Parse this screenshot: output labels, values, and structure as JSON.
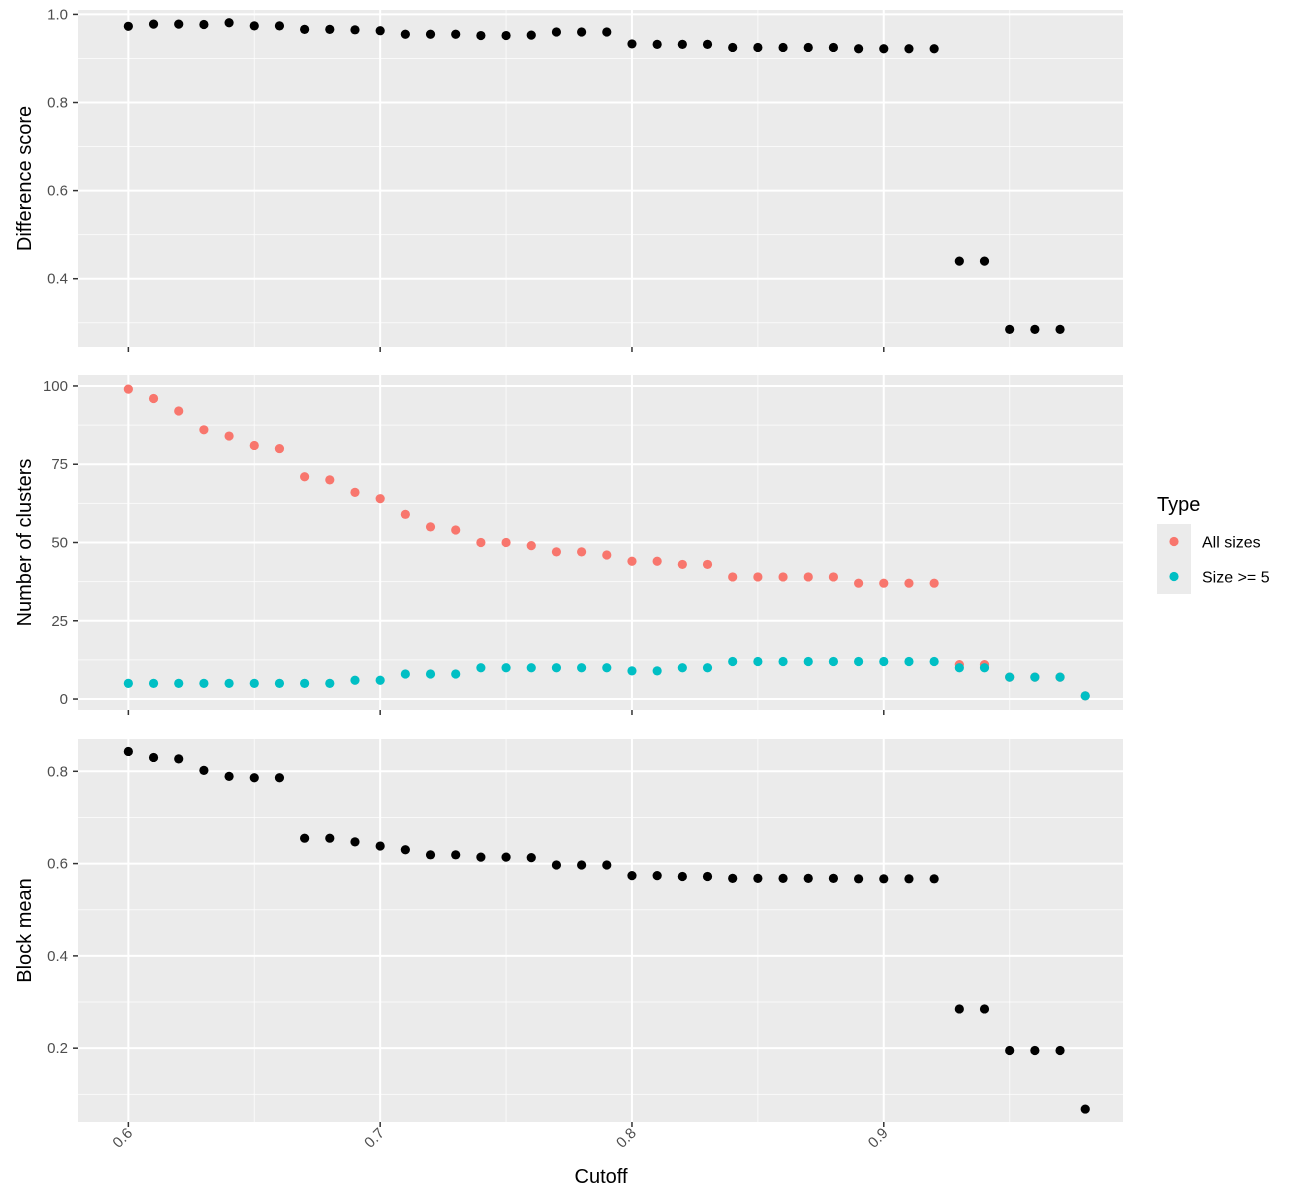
{
  "chart_data": {
    "type": "scatter",
    "facet_layout": "vertical, shared x axis",
    "xlabel": "Cutoff",
    "x_ticks": [
      "0.6",
      "0.7",
      "0.8",
      "0.9"
    ],
    "xlim": [
      0.58,
      0.995
    ],
    "grid": true,
    "panel_background": "#ebebeb",
    "legend": {
      "title": "Type",
      "position": "right",
      "entries": [
        {
          "label": "All sizes",
          "color": "#f8766d"
        },
        {
          "label": "Size >= 5",
          "color": "#00bfc4"
        }
      ]
    },
    "panels": [
      {
        "ylabel": "Difference score",
        "ylim": [
          0.245,
          1.01
        ],
        "y_ticks": [
          "0.4",
          "0.6",
          "0.8",
          "1.0"
        ],
        "series": [
          {
            "color": "#000000",
            "x": [
              0.6,
              0.61,
              0.62,
              0.63,
              0.64,
              0.65,
              0.66,
              0.67,
              0.68,
              0.69,
              0.7,
              0.71,
              0.72,
              0.73,
              0.74,
              0.75,
              0.76,
              0.77,
              0.78,
              0.79,
              0.8,
              0.81,
              0.82,
              0.83,
              0.84,
              0.85,
              0.86,
              0.87,
              0.88,
              0.89,
              0.9,
              0.91,
              0.92,
              0.93,
              0.94,
              0.95,
              0.96,
              0.97
            ],
            "y": [
              0.973,
              0.978,
              0.978,
              0.977,
              0.981,
              0.974,
              0.974,
              0.966,
              0.966,
              0.965,
              0.963,
              0.955,
              0.955,
              0.955,
              0.952,
              0.952,
              0.953,
              0.96,
              0.96,
              0.96,
              0.933,
              0.932,
              0.932,
              0.932,
              0.925,
              0.925,
              0.925,
              0.925,
              0.925,
              0.922,
              0.922,
              0.922,
              0.922,
              0.44,
              0.44,
              0.285,
              0.285,
              0.285
            ]
          }
        ]
      },
      {
        "ylabel": "Number of clusters",
        "ylim": [
          -3.5,
          103.5
        ],
        "y_ticks": [
          "0",
          "25",
          "50",
          "75",
          "100"
        ],
        "series": [
          {
            "name": "All sizes",
            "color": "#f8766d",
            "x": [
              0.6,
              0.61,
              0.62,
              0.63,
              0.64,
              0.65,
              0.66,
              0.67,
              0.68,
              0.69,
              0.7,
              0.71,
              0.72,
              0.73,
              0.74,
              0.75,
              0.76,
              0.77,
              0.78,
              0.79,
              0.8,
              0.81,
              0.82,
              0.83,
              0.84,
              0.85,
              0.86,
              0.87,
              0.88,
              0.89,
              0.9,
              0.91,
              0.92,
              0.93,
              0.94,
              0.95,
              0.96,
              0.97,
              0.98
            ],
            "y": [
              99,
              96,
              92,
              86,
              84,
              81,
              80,
              71,
              70,
              66,
              64,
              59,
              55,
              54,
              50,
              50,
              49,
              47,
              47,
              46,
              44,
              44,
              43,
              43,
              39,
              39,
              39,
              39,
              39,
              37,
              37,
              37,
              37,
              11,
              11,
              7,
              7,
              7,
              1
            ]
          },
          {
            "name": "Size >= 5",
            "color": "#00bfc4",
            "x": [
              0.6,
              0.61,
              0.62,
              0.63,
              0.64,
              0.65,
              0.66,
              0.67,
              0.68,
              0.69,
              0.7,
              0.71,
              0.72,
              0.73,
              0.74,
              0.75,
              0.76,
              0.77,
              0.78,
              0.79,
              0.8,
              0.81,
              0.82,
              0.83,
              0.84,
              0.85,
              0.86,
              0.87,
              0.88,
              0.89,
              0.9,
              0.91,
              0.92,
              0.93,
              0.94,
              0.95,
              0.96,
              0.97,
              0.98
            ],
            "y": [
              5,
              5,
              5,
              5,
              5,
              5,
              5,
              5,
              5,
              6,
              6,
              8,
              8,
              8,
              10,
              10,
              10,
              10,
              10,
              10,
              9,
              9,
              10,
              10,
              12,
              12,
              12,
              12,
              12,
              12,
              12,
              12,
              12,
              10,
              10,
              7,
              7,
              7,
              1
            ]
          }
        ]
      },
      {
        "ylabel": "Block mean",
        "ylim": [
          0.04,
          0.87
        ],
        "y_ticks": [
          "0.2",
          "0.4",
          "0.6",
          "0.8"
        ],
        "series": [
          {
            "color": "#000000",
            "x": [
              0.6,
              0.61,
              0.62,
              0.63,
              0.64,
              0.65,
              0.66,
              0.67,
              0.68,
              0.69,
              0.7,
              0.71,
              0.72,
              0.73,
              0.74,
              0.75,
              0.76,
              0.77,
              0.78,
              0.79,
              0.8,
              0.81,
              0.82,
              0.83,
              0.84,
              0.85,
              0.86,
              0.87,
              0.88,
              0.89,
              0.9,
              0.91,
              0.92,
              0.93,
              0.94,
              0.95,
              0.96,
              0.97,
              0.98
            ],
            "y": [
              0.843,
              0.83,
              0.827,
              0.802,
              0.789,
              0.786,
              0.786,
              0.655,
              0.655,
              0.647,
              0.638,
              0.63,
              0.619,
              0.619,
              0.614,
              0.614,
              0.613,
              0.597,
              0.597,
              0.597,
              0.574,
              0.574,
              0.572,
              0.572,
              0.568,
              0.568,
              0.568,
              0.568,
              0.568,
              0.567,
              0.567,
              0.567,
              0.567,
              0.285,
              0.285,
              0.195,
              0.195,
              0.195,
              0.068
            ]
          }
        ]
      }
    ]
  }
}
